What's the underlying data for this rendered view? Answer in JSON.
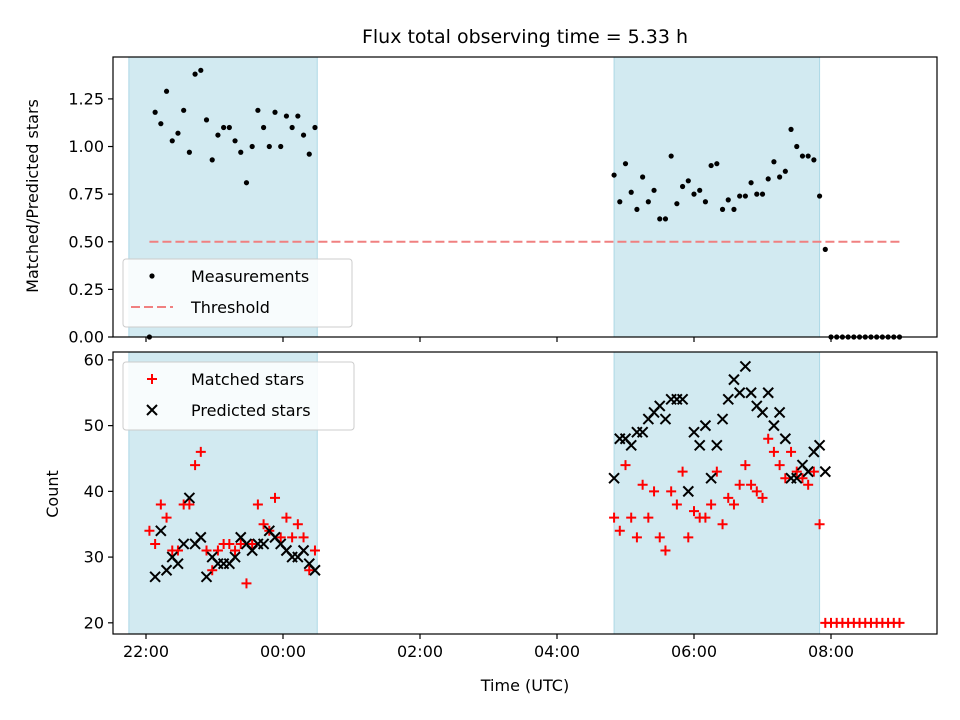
{
  "chart_data": [
    {
      "type": "scatter",
      "title": "Flux total observing time = 5.33 h",
      "ylabel": "Matched/Predicted stars",
      "ylim": [
        0,
        1.47
      ],
      "yticks": [
        "0.00",
        "0.25",
        "0.50",
        "0.75",
        "1.00",
        "1.25"
      ],
      "ytick_values": [
        0,
        0.25,
        0.5,
        0.75,
        1.0,
        1.25
      ],
      "highlight_spans": [
        [
          "21:45",
          "00:30"
        ],
        [
          "04:50",
          "07:50"
        ]
      ],
      "highlight_color": "#add8e6",
      "legend": {
        "placement": "lower-left",
        "entries": [
          {
            "label": "Measurements",
            "kind": "dot",
            "color": "#000000"
          },
          {
            "label": "Threshold",
            "kind": "dashed-line",
            "color": "#f08080"
          }
        ]
      },
      "threshold": {
        "value": 0.5,
        "x": [
          "22:03",
          "09:03"
        ],
        "color": "#f08080"
      },
      "series": [
        {
          "kind": "dot",
          "color": "#000000",
          "points": [
            [
              "22:03",
              0.0
            ],
            [
              "22:08",
              1.18
            ],
            [
              "22:13",
              1.12
            ],
            [
              "22:18",
              1.29
            ],
            [
              "22:23",
              1.03
            ],
            [
              "22:28",
              1.07
            ],
            [
              "22:33",
              1.19
            ],
            [
              "22:38",
              0.97
            ],
            [
              "22:43",
              1.38
            ],
            [
              "22:48",
              1.4
            ],
            [
              "22:53",
              1.14
            ],
            [
              "22:58",
              0.93
            ],
            [
              "23:03",
              1.06
            ],
            [
              "23:08",
              1.1
            ],
            [
              "23:13",
              1.1
            ],
            [
              "23:18",
              1.03
            ],
            [
              "23:23",
              0.97
            ],
            [
              "23:28",
              0.81
            ],
            [
              "23:33",
              1.0
            ],
            [
              "23:38",
              1.19
            ],
            [
              "23:43",
              1.1
            ],
            [
              "23:48",
              1.0
            ],
            [
              "23:53",
              1.18
            ],
            [
              "23:58",
              1.0
            ],
            [
              "00:03",
              1.16
            ],
            [
              "00:08",
              1.1
            ],
            [
              "00:13",
              1.16
            ],
            [
              "00:18",
              1.06
            ],
            [
              "00:23",
              0.96
            ],
            [
              "00:28",
              1.1
            ],
            [
              "04:50",
              0.85
            ],
            [
              "04:55",
              0.71
            ],
            [
              "05:00",
              0.91
            ],
            [
              "05:05",
              0.76
            ],
            [
              "05:10",
              0.67
            ],
            [
              "05:15",
              0.84
            ],
            [
              "05:20",
              0.71
            ],
            [
              "05:25",
              0.77
            ],
            [
              "05:30",
              0.62
            ],
            [
              "05:35",
              0.62
            ],
            [
              "05:40",
              0.95
            ],
            [
              "05:45",
              0.7
            ],
            [
              "05:50",
              0.79
            ],
            [
              "05:55",
              0.82
            ],
            [
              "06:00",
              0.75
            ],
            [
              "06:05",
              0.77
            ],
            [
              "06:10",
              0.71
            ],
            [
              "06:15",
              0.9
            ],
            [
              "06:20",
              0.91
            ],
            [
              "06:25",
              0.67
            ],
            [
              "06:30",
              0.72
            ],
            [
              "06:35",
              0.67
            ],
            [
              "06:40",
              0.74
            ],
            [
              "06:45",
              0.74
            ],
            [
              "06:50",
              0.81
            ],
            [
              "06:55",
              0.75
            ],
            [
              "07:00",
              0.75
            ],
            [
              "07:05",
              0.83
            ],
            [
              "07:10",
              0.92
            ],
            [
              "07:15",
              0.84
            ],
            [
              "07:20",
              0.87
            ],
            [
              "07:25",
              1.09
            ],
            [
              "07:30",
              1.0
            ],
            [
              "07:35",
              0.95
            ],
            [
              "07:40",
              0.95
            ],
            [
              "07:45",
              0.93
            ],
            [
              "07:50",
              0.74
            ],
            [
              "07:55",
              0.46
            ],
            [
              "08:00",
              0.0
            ],
            [
              "08:05",
              0.0
            ],
            [
              "08:10",
              0.0
            ],
            [
              "08:15",
              0.0
            ],
            [
              "08:20",
              0.0
            ],
            [
              "08:25",
              0.0
            ],
            [
              "08:30",
              0.0
            ],
            [
              "08:35",
              0.0
            ],
            [
              "08:40",
              0.0
            ],
            [
              "08:45",
              0.0
            ],
            [
              "08:50",
              0.0
            ],
            [
              "08:55",
              0.0
            ],
            [
              "09:00",
              0.0
            ]
          ]
        }
      ]
    },
    {
      "type": "scatter",
      "xlabel": "Time (UTC)",
      "ylabel": "Count",
      "ylim": [
        18.3,
        61.2
      ],
      "yticks": [
        "20",
        "30",
        "40",
        "50",
        "60"
      ],
      "ytick_values": [
        20,
        30,
        40,
        50,
        60
      ],
      "xticks": [
        "22:00",
        "00:00",
        "02:00",
        "04:00",
        "06:00",
        "08:00"
      ],
      "highlight_spans": [
        [
          "21:45",
          "00:30"
        ],
        [
          "04:50",
          "07:50"
        ]
      ],
      "highlight_color": "#add8e6",
      "legend": {
        "placement": "upper-left",
        "entries": [
          {
            "label": "Matched stars",
            "kind": "plus",
            "color": "#ff0000"
          },
          {
            "label": "Predicted stars",
            "kind": "cross",
            "color": "#000000"
          }
        ]
      },
      "series": [
        {
          "name": "Matched stars",
          "kind": "plus",
          "color": "#ff0000",
          "points": [
            [
              "22:03",
              34
            ],
            [
              "22:08",
              32
            ],
            [
              "22:13",
              38
            ],
            [
              "22:18",
              36
            ],
            [
              "22:23",
              31
            ],
            [
              "22:28",
              31
            ],
            [
              "22:33",
              38
            ],
            [
              "22:38",
              38
            ],
            [
              "22:43",
              44
            ],
            [
              "22:48",
              46
            ],
            [
              "22:53",
              31
            ],
            [
              "22:58",
              28
            ],
            [
              "23:03",
              31
            ],
            [
              "23:08",
              32
            ],
            [
              "23:13",
              32
            ],
            [
              "23:18",
              31
            ],
            [
              "23:23",
              32
            ],
            [
              "23:28",
              26
            ],
            [
              "23:33",
              32
            ],
            [
              "23:38",
              38
            ],
            [
              "23:43",
              35
            ],
            [
              "23:48",
              34
            ],
            [
              "23:53",
              39
            ],
            [
              "23:58",
              33
            ],
            [
              "00:03",
              36
            ],
            [
              "00:08",
              33
            ],
            [
              "00:13",
              35
            ],
            [
              "00:18",
              33
            ],
            [
              "00:23",
              28
            ],
            [
              "00:28",
              31
            ],
            [
              "04:50",
              36
            ],
            [
              "04:55",
              34
            ],
            [
              "05:00",
              44
            ],
            [
              "05:05",
              36
            ],
            [
              "05:10",
              33
            ],
            [
              "05:15",
              41
            ],
            [
              "05:20",
              36
            ],
            [
              "05:25",
              40
            ],
            [
              "05:30",
              33
            ],
            [
              "05:35",
              31
            ],
            [
              "05:40",
              40
            ],
            [
              "05:45",
              38
            ],
            [
              "05:50",
              43
            ],
            [
              "05:55",
              33
            ],
            [
              "06:00",
              37
            ],
            [
              "06:05",
              36
            ],
            [
              "06:10",
              36
            ],
            [
              "06:15",
              38
            ],
            [
              "06:20",
              43
            ],
            [
              "06:25",
              35
            ],
            [
              "06:30",
              39
            ],
            [
              "06:35",
              38
            ],
            [
              "06:40",
              41
            ],
            [
              "06:45",
              44
            ],
            [
              "06:50",
              41
            ],
            [
              "06:55",
              40
            ],
            [
              "07:00",
              39
            ],
            [
              "07:05",
              48
            ],
            [
              "07:10",
              46
            ],
            [
              "07:15",
              44
            ],
            [
              "07:20",
              42
            ],
            [
              "07:25",
              46
            ],
            [
              "07:30",
              43
            ],
            [
              "07:35",
              42
            ],
            [
              "07:40",
              41
            ],
            [
              "07:45",
              43
            ],
            [
              "07:50",
              35
            ],
            [
              "07:55",
              20
            ],
            [
              "08:00",
              20
            ],
            [
              "08:05",
              20
            ],
            [
              "08:10",
              20
            ],
            [
              "08:15",
              20
            ],
            [
              "08:20",
              20
            ],
            [
              "08:25",
              20
            ],
            [
              "08:30",
              20
            ],
            [
              "08:35",
              20
            ],
            [
              "08:40",
              20
            ],
            [
              "08:45",
              20
            ],
            [
              "08:50",
              20
            ],
            [
              "08:55",
              20
            ],
            [
              "09:00",
              20
            ]
          ]
        },
        {
          "name": "Predicted stars",
          "kind": "cross",
          "color": "#000000",
          "points": [
            [
              "22:08",
              27
            ],
            [
              "22:13",
              34
            ],
            [
              "22:18",
              28
            ],
            [
              "22:23",
              30
            ],
            [
              "22:28",
              29
            ],
            [
              "22:33",
              32
            ],
            [
              "22:38",
              39
            ],
            [
              "22:43",
              32
            ],
            [
              "22:48",
              33
            ],
            [
              "22:53",
              27
            ],
            [
              "22:58",
              30
            ],
            [
              "23:03",
              29
            ],
            [
              "23:08",
              29
            ],
            [
              "23:13",
              29
            ],
            [
              "23:18",
              30
            ],
            [
              "23:23",
              33
            ],
            [
              "23:28",
              32
            ],
            [
              "23:33",
              31
            ],
            [
              "23:38",
              32
            ],
            [
              "23:43",
              32
            ],
            [
              "23:48",
              34
            ],
            [
              "23:53",
              33
            ],
            [
              "23:58",
              32
            ],
            [
              "00:03",
              31
            ],
            [
              "00:08",
              30
            ],
            [
              "00:13",
              30
            ],
            [
              "00:18",
              31
            ],
            [
              "00:23",
              29
            ],
            [
              "00:28",
              28
            ],
            [
              "04:50",
              42
            ],
            [
              "04:55",
              48
            ],
            [
              "05:00",
              48
            ],
            [
              "05:05",
              47
            ],
            [
              "05:10",
              49
            ],
            [
              "05:15",
              49
            ],
            [
              "05:20",
              51
            ],
            [
              "05:25",
              52
            ],
            [
              "05:30",
              53
            ],
            [
              "05:35",
              51
            ],
            [
              "05:40",
              54
            ],
            [
              "05:45",
              54
            ],
            [
              "05:50",
              54
            ],
            [
              "05:55",
              40
            ],
            [
              "06:00",
              49
            ],
            [
              "06:05",
              47
            ],
            [
              "06:10",
              50
            ],
            [
              "06:15",
              42
            ],
            [
              "06:20",
              47
            ],
            [
              "06:25",
              51
            ],
            [
              "06:30",
              54
            ],
            [
              "06:35",
              57
            ],
            [
              "06:40",
              55
            ],
            [
              "06:45",
              59
            ],
            [
              "06:50",
              55
            ],
            [
              "06:55",
              53
            ],
            [
              "07:00",
              52
            ],
            [
              "07:05",
              55
            ],
            [
              "07:10",
              50
            ],
            [
              "07:15",
              52
            ],
            [
              "07:20",
              48
            ],
            [
              "07:25",
              42
            ],
            [
              "07:30",
              42
            ],
            [
              "07:35",
              44
            ],
            [
              "07:40",
              43
            ],
            [
              "07:45",
              46
            ],
            [
              "07:50",
              47
            ],
            [
              "07:55",
              43
            ]
          ]
        }
      ]
    }
  ]
}
